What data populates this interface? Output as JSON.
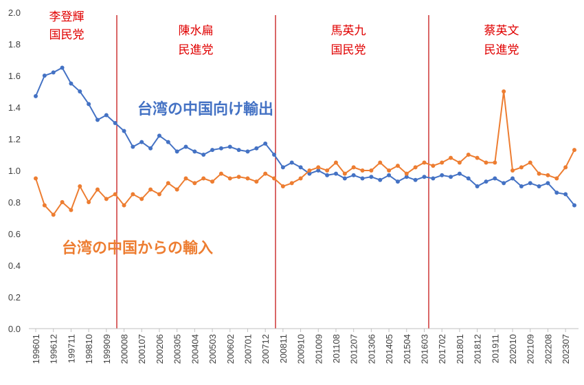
{
  "chart_data": {
    "type": "line",
    "categories": [
      "199601",
      null,
      "199612",
      null,
      "199711",
      null,
      "199810",
      null,
      "199909",
      null,
      "200008",
      null,
      "200107",
      null,
      "200206",
      null,
      "200305",
      null,
      "200404",
      null,
      "200503",
      null,
      "200602",
      null,
      "200701",
      null,
      "200712",
      null,
      "200811",
      null,
      "200910",
      null,
      "201009",
      null,
      "201108",
      null,
      "201207",
      null,
      "201306",
      null,
      "201405",
      null,
      "201504",
      null,
      "201603",
      null,
      "201702",
      null,
      "201801",
      null,
      "201812",
      null,
      "201911",
      null,
      "202010",
      null,
      "202109",
      null,
      "202208",
      null,
      "202307",
      null
    ],
    "series": [
      {
        "name": "台湾の中国向け輸出",
        "color": "#4472c4",
        "values": [
          1.47,
          1.6,
          1.62,
          1.65,
          1.55,
          1.5,
          1.42,
          1.32,
          1.35,
          1.3,
          1.25,
          1.15,
          1.18,
          1.14,
          1.22,
          1.18,
          1.12,
          1.15,
          1.12,
          1.1,
          1.13,
          1.14,
          1.15,
          1.13,
          1.12,
          1.14,
          1.17,
          1.1,
          1.02,
          1.05,
          1.02,
          0.98,
          1.0,
          0.97,
          0.98,
          0.95,
          0.97,
          0.95,
          0.96,
          0.94,
          0.97,
          0.93,
          0.96,
          0.94,
          0.96,
          0.95,
          0.97,
          0.96,
          0.98,
          0.95,
          0.9,
          0.93,
          0.95,
          0.92,
          0.95,
          0.9,
          0.92,
          0.9,
          0.92,
          0.86,
          0.85,
          0.78
        ]
      },
      {
        "name": "台湾の中国からの輸入",
        "color": "#ed7d31",
        "values": [
          0.95,
          0.78,
          0.72,
          0.8,
          0.75,
          0.9,
          0.8,
          0.88,
          0.82,
          0.85,
          0.78,
          0.85,
          0.82,
          0.88,
          0.85,
          0.92,
          0.88,
          0.95,
          0.92,
          0.95,
          0.93,
          0.98,
          0.95,
          0.96,
          0.95,
          0.93,
          0.98,
          0.95,
          0.9,
          0.92,
          0.95,
          1.0,
          1.02,
          1.0,
          1.05,
          0.98,
          1.02,
          1.0,
          1.0,
          1.05,
          1.0,
          1.03,
          0.98,
          1.02,
          1.05,
          1.03,
          1.05,
          1.08,
          1.05,
          1.1,
          1.08,
          1.05,
          1.05,
          1.5,
          1.0,
          1.02,
          1.05,
          0.98,
          0.97,
          0.95,
          1.02,
          1.13
        ]
      }
    ],
    "ylim": [
      0,
      2
    ],
    "yticks": [
      {
        "value": 0,
        "label": "0.0"
      },
      0.2,
      0.4,
      0.6,
      0.8,
      {
        "value": 1,
        "label": "1.0"
      },
      1.2,
      1.4,
      1.6,
      1.8,
      {
        "value": 2,
        "label": "2.0"
      }
    ],
    "grid": false,
    "annotations": [
      {
        "name": "李登輝",
        "party": "国民党"
      },
      {
        "name": "陳水扁",
        "party": "民進党"
      },
      {
        "name": "馬英九",
        "party": "国民党"
      },
      {
        "name": "蔡英文",
        "party": "民進党"
      }
    ]
  }
}
